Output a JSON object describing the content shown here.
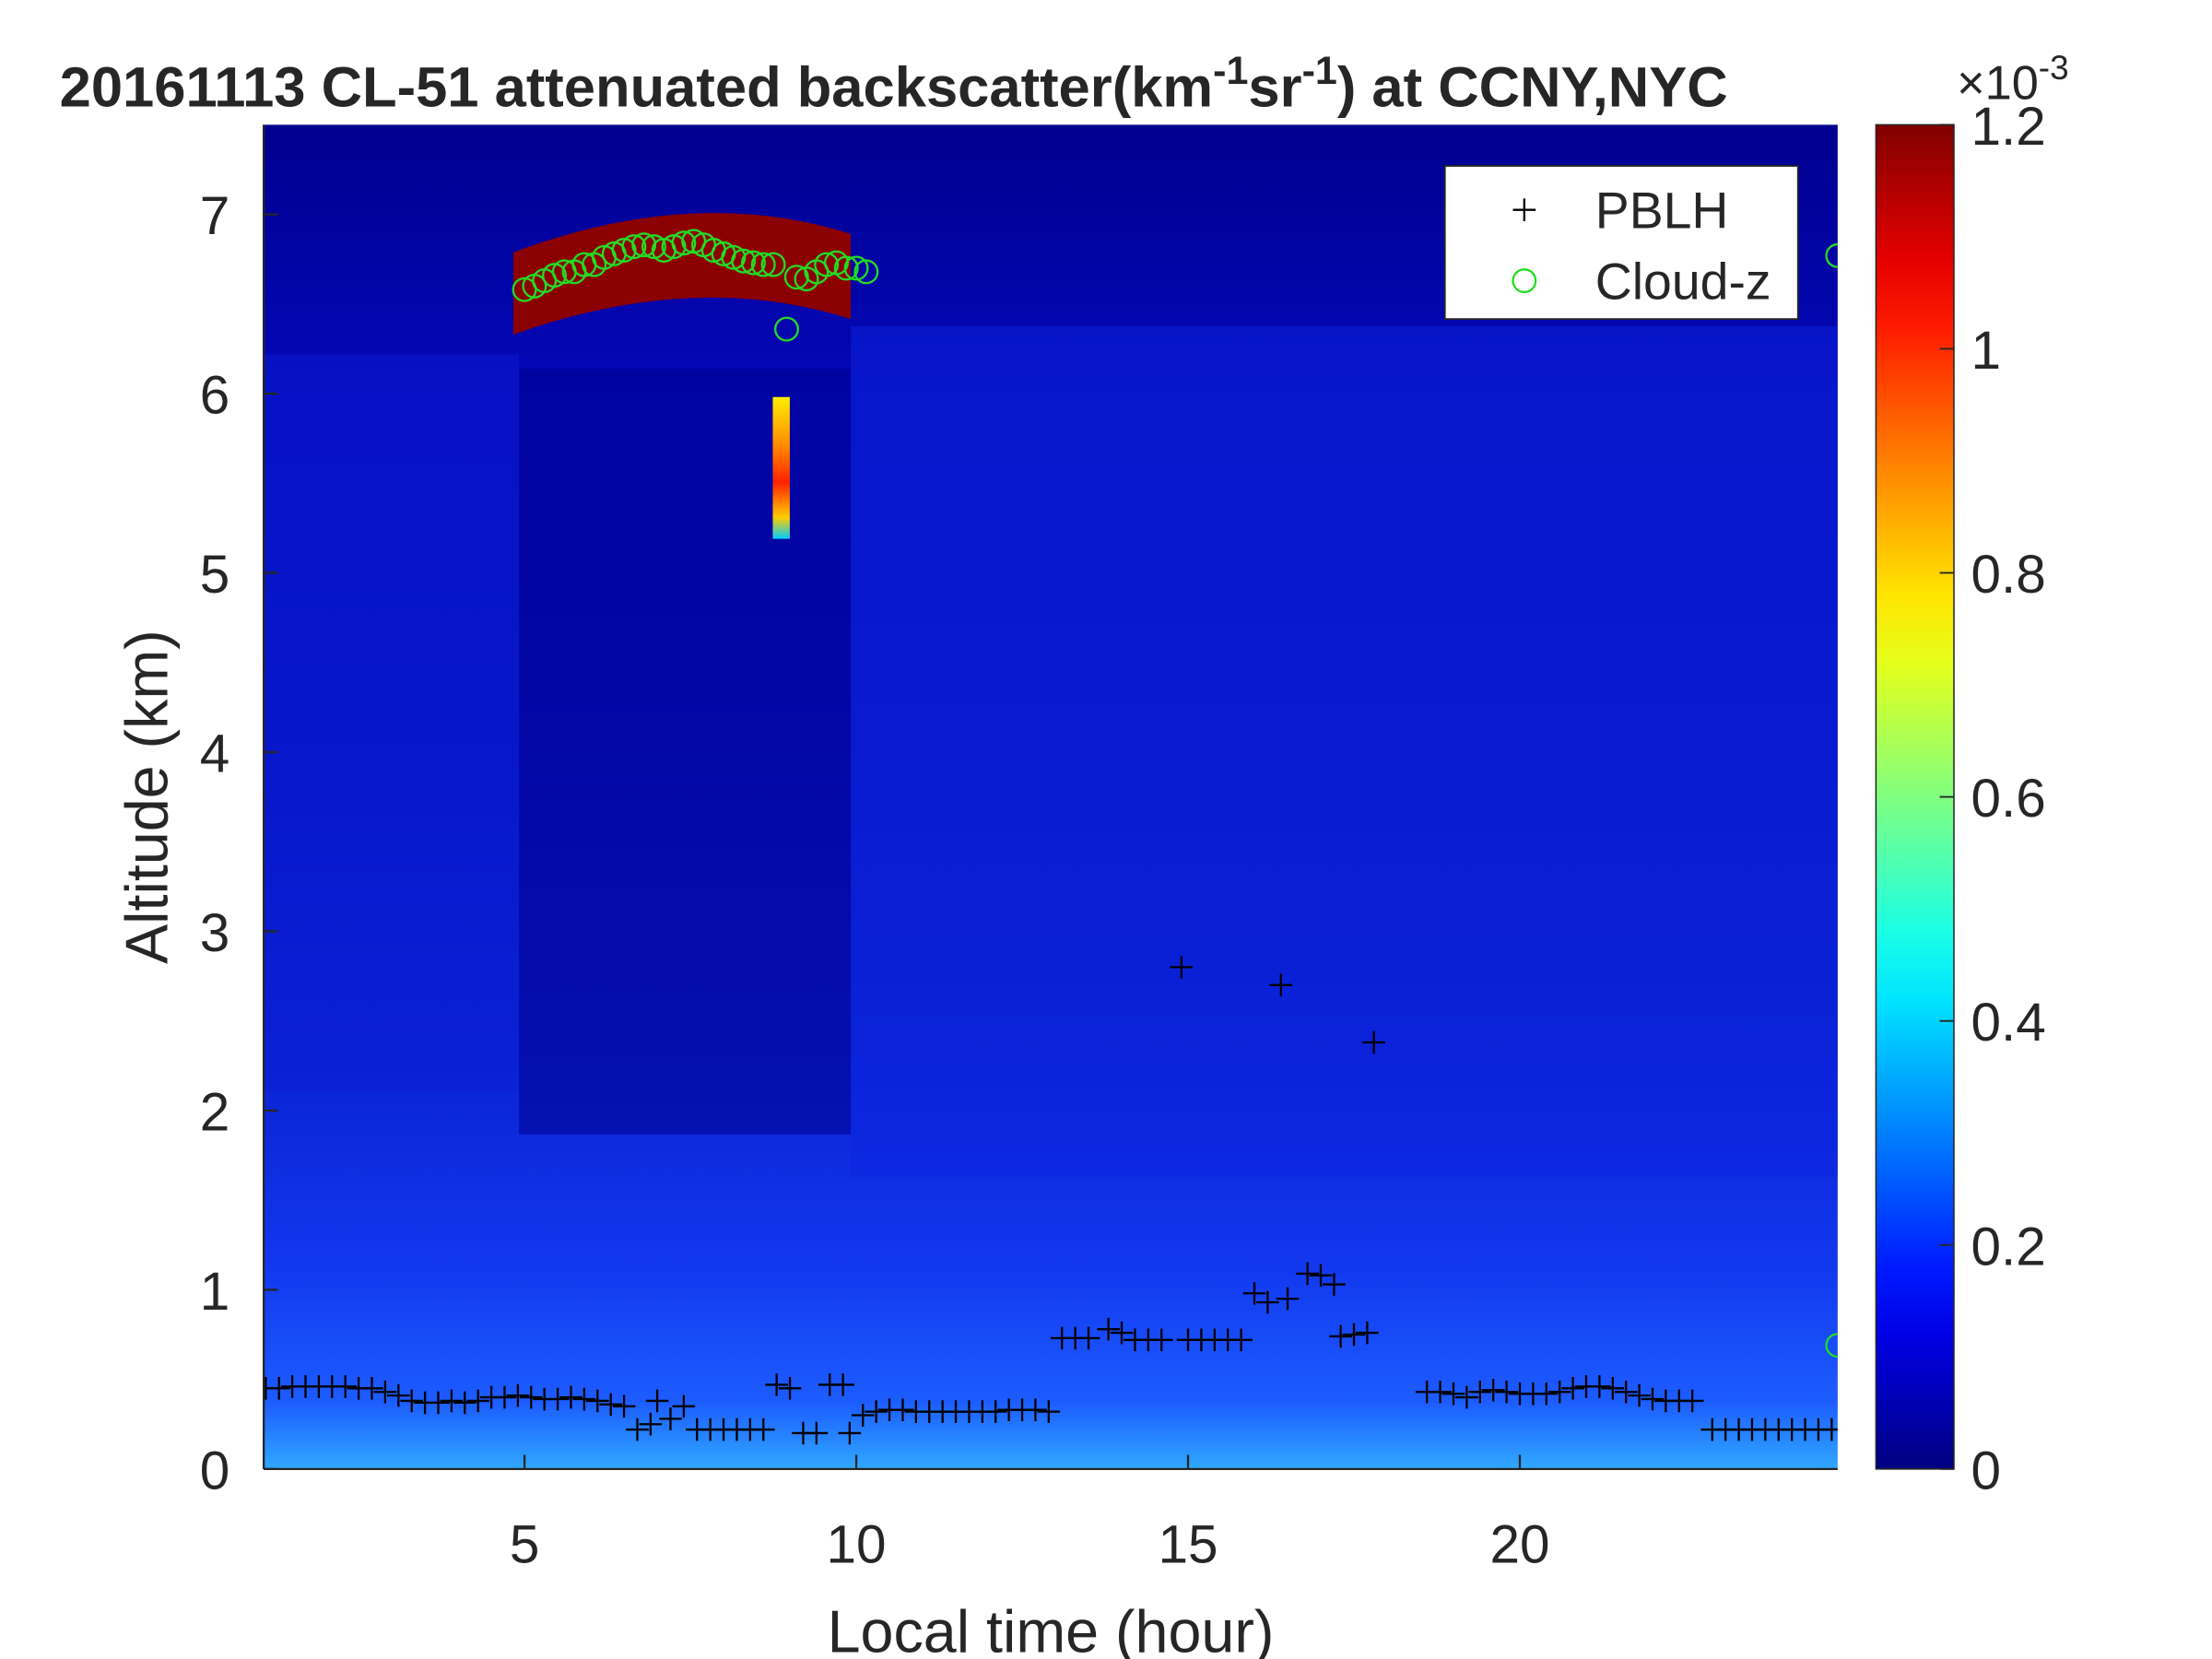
{
  "chart_data": {
    "type": "scatter",
    "title_parts": [
      "20161113  CL-51 attenuated backscatter(km",
      "-1",
      "sr",
      "-1",
      ") at CCNY,NYC"
    ],
    "x_label": "Local time (hour)",
    "y_label": "Altitude (km)",
    "xlim": [
      1.07,
      24.79
    ],
    "ylim": [
      0,
      7.5
    ],
    "xticks": [
      5,
      10,
      15,
      20
    ],
    "yticks": [
      0,
      1,
      2,
      3,
      4,
      5,
      6,
      7
    ],
    "colorbar": {
      "colormap": "jet",
      "clim": [
        0,
        1.2
      ],
      "ticks": [
        0,
        0.2,
        0.4,
        0.6,
        0.8,
        1,
        1.2
      ],
      "exponent_base": "×10",
      "exponent_power": "-3"
    },
    "legend": "upper right",
    "series": [
      {
        "name": "PBLH",
        "color": "#000000",
        "marker": "+",
        "x": [
          1.1,
          1.3,
          1.5,
          1.7,
          1.9,
          2.1,
          2.3,
          2.5,
          2.7,
          2.9,
          3.1,
          3.3,
          3.5,
          3.7,
          3.9,
          4.1,
          4.3,
          4.5,
          4.7,
          4.9,
          5.1,
          5.3,
          5.5,
          5.7,
          5.9,
          6.1,
          6.3,
          6.5,
          6.7,
          6.9,
          7.0,
          7.2,
          7.4,
          7.6,
          7.8,
          8.0,
          8.2,
          8.4,
          8.6,
          8.8,
          9.0,
          9.2,
          9.4,
          9.6,
          9.8,
          9.9,
          10.1,
          10.3,
          10.5,
          10.7,
          10.9,
          11.1,
          11.3,
          11.5,
          11.7,
          11.9,
          12.1,
          12.3,
          12.5,
          12.7,
          12.9,
          13.1,
          13.3,
          13.5,
          13.8,
          14.0,
          14.2,
          14.4,
          14.6,
          14.9,
          15.0,
          15.2,
          15.4,
          15.6,
          15.8,
          16.0,
          16.2,
          16.4,
          16.5,
          16.8,
          17.0,
          17.2,
          17.3,
          17.5,
          17.7,
          17.8,
          18.6,
          18.8,
          19.0,
          19.2,
          19.4,
          19.6,
          19.8,
          20.0,
          20.2,
          20.4,
          20.6,
          20.8,
          21.0,
          21.2,
          21.4,
          21.6,
          21.8,
          22.0,
          22.2,
          22.4,
          22.6,
          22.9,
          23.1,
          23.3,
          23.5,
          23.7,
          23.9,
          24.1,
          24.3,
          24.5,
          24.7
        ],
        "values": [
          0.45,
          0.45,
          0.46,
          0.46,
          0.46,
          0.46,
          0.46,
          0.45,
          0.45,
          0.43,
          0.41,
          0.38,
          0.37,
          0.37,
          0.38,
          0.37,
          0.38,
          0.4,
          0.4,
          0.41,
          0.4,
          0.39,
          0.39,
          0.4,
          0.39,
          0.38,
          0.36,
          0.35,
          0.22,
          0.25,
          0.38,
          0.28,
          0.35,
          0.22,
          0.22,
          0.22,
          0.22,
          0.22,
          0.22,
          0.47,
          0.45,
          0.2,
          0.2,
          0.47,
          0.47,
          0.2,
          0.3,
          0.32,
          0.33,
          0.33,
          0.32,
          0.32,
          0.32,
          0.32,
          0.32,
          0.32,
          0.32,
          0.33,
          0.33,
          0.33,
          0.32,
          0.73,
          0.73,
          0.73,
          0.78,
          0.76,
          0.72,
          0.72,
          0.72,
          2.8,
          0.72,
          0.72,
          0.72,
          0.72,
          0.72,
          0.98,
          0.93,
          2.7,
          0.95,
          1.09,
          1.08,
          1.03,
          0.74,
          0.75,
          0.76,
          2.38,
          0.43,
          0.43,
          0.42,
          0.4,
          0.43,
          0.44,
          0.43,
          0.42,
          0.42,
          0.42,
          0.43,
          0.45,
          0.46,
          0.46,
          0.45,
          0.43,
          0.41,
          0.39,
          0.38,
          0.38,
          0.38,
          0.22,
          0.22,
          0.22,
          0.22,
          0.22,
          0.22,
          0.22,
          0.22,
          0.22,
          0.22
        ]
      },
      {
        "name": "Cloud-z",
        "color": "#22dd22",
        "marker": "o",
        "x": [
          5.0,
          5.15,
          5.3,
          5.45,
          5.6,
          5.75,
          5.9,
          6.05,
          6.2,
          6.35,
          6.5,
          6.65,
          6.8,
          6.95,
          7.1,
          7.25,
          7.4,
          7.55,
          7.7,
          7.85,
          8.0,
          8.15,
          8.3,
          8.45,
          8.6,
          8.75,
          8.95,
          9.1,
          9.25,
          9.4,
          9.55,
          9.7,
          9.85,
          10.0,
          10.15,
          24.79,
          24.79
        ],
        "values": [
          6.58,
          6.6,
          6.63,
          6.66,
          6.68,
          6.68,
          6.72,
          6.72,
          6.76,
          6.78,
          6.8,
          6.82,
          6.83,
          6.82,
          6.8,
          6.82,
          6.84,
          6.85,
          6.83,
          6.8,
          6.78,
          6.76,
          6.74,
          6.73,
          6.72,
          6.72,
          6.36,
          6.65,
          6.64,
          6.68,
          6.72,
          6.73,
          6.7,
          6.7,
          6.68,
          6.77,
          0.69
        ]
      }
    ]
  }
}
